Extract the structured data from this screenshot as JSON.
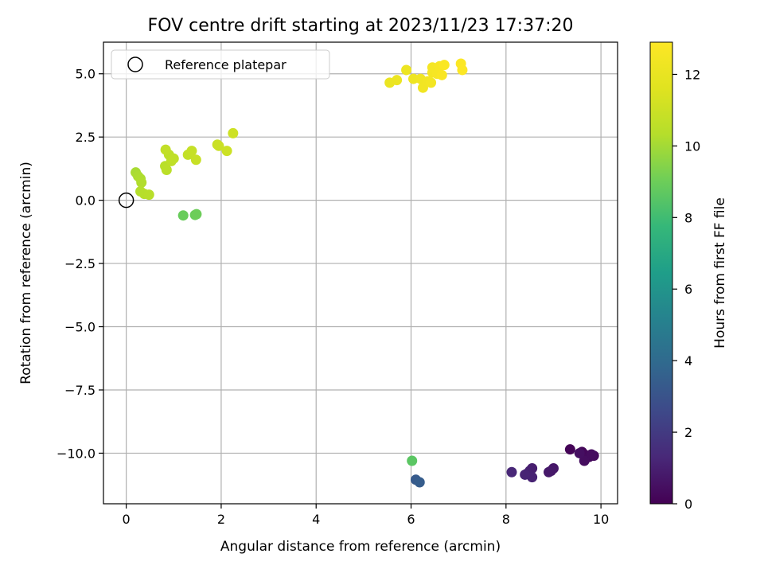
{
  "chart_data": {
    "type": "scatter",
    "title": "FOV centre drift starting at 2023/11/23 17:37:20",
    "xlabel": "Angular distance from reference (arcmin)",
    "ylabel": "Rotation from reference (arcmin)",
    "xlim": [
      -0.48,
      10.35
    ],
    "ylim": [
      -12.0,
      6.25
    ],
    "xticks": [
      0,
      2,
      4,
      6,
      8,
      10
    ],
    "xtick_labels": [
      "0",
      "2",
      "4",
      "6",
      "8",
      "10"
    ],
    "yticks": [
      -10.0,
      -7.5,
      -5.0,
      -2.5,
      0.0,
      2.5,
      5.0
    ],
    "ytick_labels": [
      "−10.0",
      "−7.5",
      "−5.0",
      "−2.5",
      "0.0",
      "2.5",
      "5.0"
    ],
    "grid": true,
    "legend": {
      "placement": "top-left",
      "entries": [
        "Reference platepar"
      ]
    },
    "colorbar": {
      "label": "Hours from first FF file",
      "colormap": "viridis",
      "range": [
        0,
        12.9
      ],
      "ticks": [
        0,
        2,
        4,
        6,
        8,
        10,
        12
      ],
      "tick_labels": [
        "0",
        "2",
        "4",
        "6",
        "8",
        "10",
        "12"
      ]
    },
    "reference_point": {
      "name": "Reference platepar",
      "x": 0.0,
      "y": 0.0
    },
    "points": [
      {
        "x": 9.35,
        "y": -9.85,
        "t": 0.1
      },
      {
        "x": 9.6,
        "y": -9.95,
        "t": 0.15
      },
      {
        "x": 9.65,
        "y": -10.05,
        "t": 0.2
      },
      {
        "x": 9.75,
        "y": -10.15,
        "t": 0.25
      },
      {
        "x": 9.85,
        "y": -10.1,
        "t": 0.3
      },
      {
        "x": 9.8,
        "y": -10.05,
        "t": 0.35
      },
      {
        "x": 9.65,
        "y": -10.3,
        "t": 0.4
      },
      {
        "x": 9.55,
        "y": -10.0,
        "t": 0.45
      },
      {
        "x": 9.0,
        "y": -10.6,
        "t": 0.7
      },
      {
        "x": 8.95,
        "y": -10.7,
        "t": 0.75
      },
      {
        "x": 8.9,
        "y": -10.75,
        "t": 0.8
      },
      {
        "x": 8.55,
        "y": -10.6,
        "t": 0.95
      },
      {
        "x": 8.5,
        "y": -10.7,
        "t": 1.0
      },
      {
        "x": 8.45,
        "y": -10.8,
        "t": 1.05
      },
      {
        "x": 8.55,
        "y": -10.95,
        "t": 1.1
      },
      {
        "x": 8.4,
        "y": -10.85,
        "t": 1.15
      },
      {
        "x": 8.12,
        "y": -10.75,
        "t": 1.25
      },
      {
        "x": 6.1,
        "y": -11.05,
        "t": 3.3
      },
      {
        "x": 6.18,
        "y": -11.15,
        "t": 3.4
      },
      {
        "x": 6.02,
        "y": -10.3,
        "t": 8.6
      },
      {
        "x": 1.2,
        "y": -0.6,
        "t": 8.9
      },
      {
        "x": 1.45,
        "y": -0.58,
        "t": 8.95
      },
      {
        "x": 1.48,
        "y": -0.55,
        "t": 9.0
      },
      {
        "x": 0.2,
        "y": 1.1,
        "t": 10.1
      },
      {
        "x": 0.25,
        "y": 0.95,
        "t": 10.15
      },
      {
        "x": 0.3,
        "y": 0.85,
        "t": 10.2
      },
      {
        "x": 0.32,
        "y": 0.7,
        "t": 10.25
      },
      {
        "x": 0.3,
        "y": 0.35,
        "t": 10.3
      },
      {
        "x": 0.38,
        "y": 0.25,
        "t": 10.35
      },
      {
        "x": 0.48,
        "y": 0.22,
        "t": 10.4
      },
      {
        "x": 0.82,
        "y": 1.35,
        "t": 10.45
      },
      {
        "x": 0.85,
        "y": 1.2,
        "t": 10.5
      },
      {
        "x": 0.9,
        "y": 1.8,
        "t": 10.55
      },
      {
        "x": 0.95,
        "y": 1.55,
        "t": 10.6
      },
      {
        "x": 1.0,
        "y": 1.65,
        "t": 10.65
      },
      {
        "x": 0.83,
        "y": 2.0,
        "t": 10.7
      },
      {
        "x": 1.3,
        "y": 1.8,
        "t": 10.75
      },
      {
        "x": 1.38,
        "y": 1.95,
        "t": 10.8
      },
      {
        "x": 1.47,
        "y": 1.6,
        "t": 10.85
      },
      {
        "x": 1.92,
        "y": 2.2,
        "t": 10.9
      },
      {
        "x": 1.95,
        "y": 2.15,
        "t": 10.95
      },
      {
        "x": 2.12,
        "y": 1.95,
        "t": 11.0
      },
      {
        "x": 2.25,
        "y": 2.65,
        "t": 11.05
      },
      {
        "x": 5.55,
        "y": 4.65,
        "t": 12.1
      },
      {
        "x": 5.7,
        "y": 4.75,
        "t": 12.15
      },
      {
        "x": 5.9,
        "y": 5.15,
        "t": 12.2
      },
      {
        "x": 6.05,
        "y": 4.8,
        "t": 12.25
      },
      {
        "x": 6.2,
        "y": 4.8,
        "t": 12.3
      },
      {
        "x": 6.25,
        "y": 4.45,
        "t": 12.35
      },
      {
        "x": 6.35,
        "y": 4.7,
        "t": 12.4
      },
      {
        "x": 6.42,
        "y": 4.65,
        "t": 12.45
      },
      {
        "x": 6.45,
        "y": 5.05,
        "t": 12.5
      },
      {
        "x": 6.45,
        "y": 5.25,
        "t": 12.55
      },
      {
        "x": 6.55,
        "y": 5.0,
        "t": 12.6
      },
      {
        "x": 6.6,
        "y": 5.3,
        "t": 12.65
      },
      {
        "x": 6.65,
        "y": 4.95,
        "t": 12.7
      },
      {
        "x": 6.7,
        "y": 5.35,
        "t": 12.75
      },
      {
        "x": 7.05,
        "y": 5.4,
        "t": 12.8
      },
      {
        "x": 7.08,
        "y": 5.15,
        "t": 12.85
      }
    ]
  }
}
